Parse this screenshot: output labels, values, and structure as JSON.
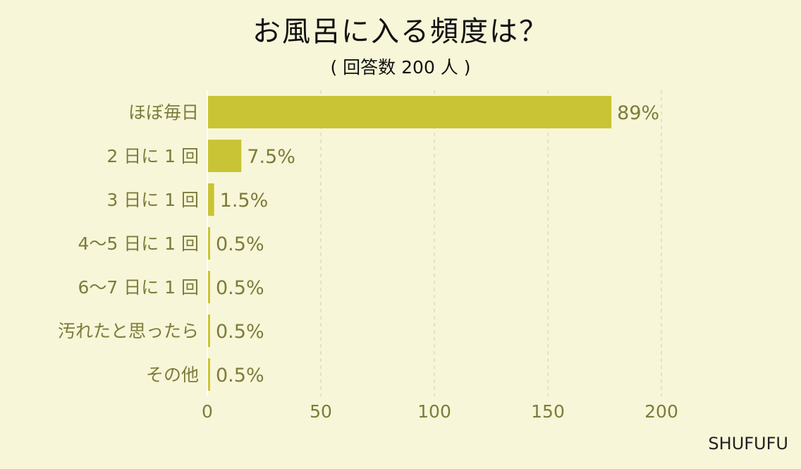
{
  "chart_data": {
    "type": "bar",
    "orientation": "horizontal",
    "title": "お風呂に入る頻度は？",
    "subtitle": "( 回答数 200 人 )",
    "categories": [
      "ほぼ毎日",
      "2 日に 1 回",
      "3 日に 1 回",
      "4〜5 日に 1 回",
      "6〜7 日に 1 回",
      "汚れたと思ったら",
      "その他"
    ],
    "values": [
      178,
      15,
      3,
      1,
      1,
      1,
      1
    ],
    "value_labels": [
      "89%",
      "7.5%",
      "1.5%",
      "0.5%",
      "0.5%",
      "0.5%",
      "0.5%"
    ],
    "xlim": [
      0,
      200
    ],
    "xticks": [
      0,
      50,
      100,
      150,
      200
    ],
    "grid": "vertical dashed",
    "bar_color": "#c9c435",
    "text_color": "#7d7b3a",
    "background": "#f7f6d8"
  },
  "source": "SHUFUFU"
}
